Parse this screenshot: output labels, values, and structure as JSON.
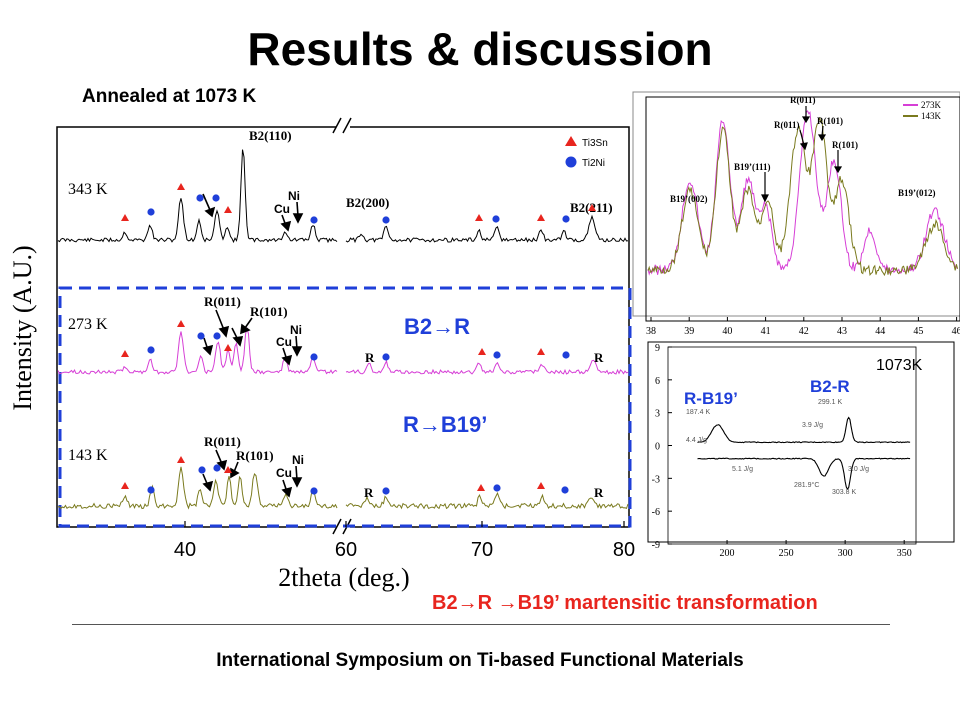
{
  "title": "Results & discussion",
  "annealed_label": "Annealed at 1073 K",
  "caption": "B2→R →B19’ martensitic transformation",
  "footer": "International Symposium on Ti-based Functional Materials",
  "chart_data": [
    {
      "type": "line",
      "xlabel": "2theta (deg.)",
      "ylabel": "Intensity (A.U.)",
      "x_ticks": [
        "40",
        "60",
        "70",
        "80"
      ],
      "legend": [
        {
          "label": "Ti3Sn",
          "marker": "triangle",
          "color": "#e8251e"
        },
        {
          "label": "Ti2Ni",
          "marker": "circle",
          "color": "#1f3fd9"
        }
      ],
      "series": [
        {
          "name": "343 K",
          "color": "#000000"
        },
        {
          "name": "273 K",
          "color": "#d63fd6"
        },
        {
          "name": "143 K",
          "color": "#7a7a1e"
        }
      ],
      "peak_labels_343": [
        "B2(110)",
        "Ni",
        "Cu",
        "B2(200)",
        "B2(211)"
      ],
      "peak_labels_273": [
        "R(011)",
        "R(101)",
        "Ni",
        "Cu",
        "R",
        "R"
      ],
      "peak_labels_143": [
        "R(011)",
        "R(101)",
        "Ni",
        "Cu",
        "R",
        "R"
      ],
      "annotations": [
        "B2→R",
        "R→B19’"
      ]
    },
    {
      "type": "line",
      "x_ticks": [
        "38",
        "39",
        "40",
        "41",
        "42",
        "43",
        "44",
        "45",
        "46"
      ],
      "legend": [
        {
          "label": "273K",
          "color": "#d63fd6"
        },
        {
          "label": "143K",
          "color": "#7a7a1e"
        }
      ],
      "peak_labels": [
        "R(011)",
        "R(011)",
        "R(101)",
        "R(101)",
        "B19’(111)",
        "B19’(002)",
        "B19’(012)"
      ]
    },
    {
      "type": "line",
      "title": "1073K",
      "x": [
        150,
        200,
        250,
        300,
        350
      ],
      "xlim": [
        150,
        360
      ],
      "ylim": [
        -9,
        9
      ],
      "y_ticks": [
        "9",
        "6",
        "3",
        "0",
        "-3",
        "-6",
        "-9"
      ],
      "x_ticks": [
        "200",
        "250",
        "300",
        "350"
      ],
      "annotations": [
        "R-B19’",
        "B2-R",
        "187.4 K",
        "4.4 J/g",
        "299.1 K",
        "3.9 J/g",
        "5.1 J/g",
        "281.9°C",
        "303.8 K",
        "3.0 J/g"
      ]
    }
  ]
}
